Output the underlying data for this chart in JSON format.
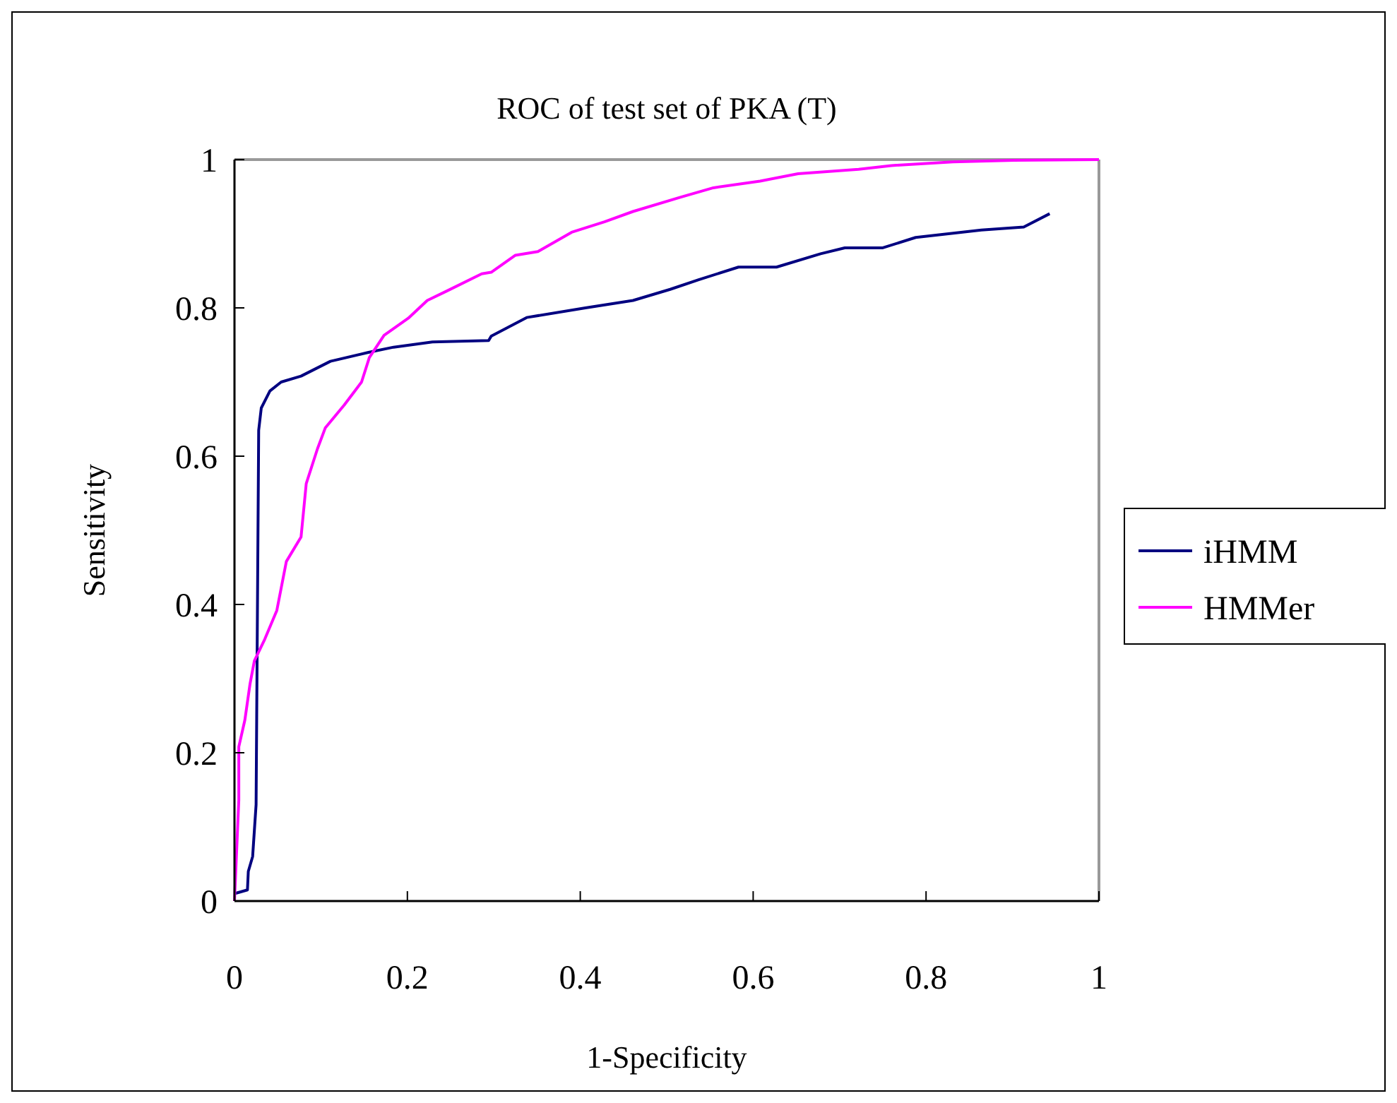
{
  "chart_data": {
    "type": "line",
    "title": "ROC of test set of PKA (T)",
    "xlabel": "1-Specificity",
    "ylabel": "Sensitivity",
    "xlim": [
      0,
      1
    ],
    "xticks": [
      0,
      0.2,
      0.4,
      0.6,
      0.8,
      1
    ],
    "ylim": [
      0,
      1
    ],
    "yticks": [
      0,
      0.2,
      0.4,
      0.6,
      0.8,
      1
    ],
    "grid": false,
    "legend": "right",
    "marker": "none",
    "line_style": "solid",
    "series": [
      {
        "name": "iHMM",
        "color": "#000080",
        "x": [
          0,
          0.015,
          0.016,
          0.021,
          0.025,
          0.028,
          0.031,
          0.041,
          0.054,
          0.077,
          0.111,
          0.155,
          0.184,
          0.229,
          0.294,
          0.297,
          0.338,
          0.406,
          0.461,
          0.504,
          0.537,
          0.583,
          0.627,
          0.678,
          0.706,
          0.75,
          0.788,
          0.864,
          0.913,
          0.943
        ],
        "values": [
          0.01,
          0.015,
          0.04,
          0.06,
          0.13,
          0.635,
          0.665,
          0.688,
          0.7,
          0.708,
          0.728,
          0.74,
          0.747,
          0.754,
          0.756,
          0.762,
          0.787,
          0.8,
          0.81,
          0.825,
          0.838,
          0.855,
          0.855,
          0.873,
          0.881,
          0.881,
          0.895,
          0.905,
          0.909,
          0.927
        ]
      },
      {
        "name": "HMMer",
        "color": "#ff00ff",
        "x": [
          0,
          0.005,
          0.005,
          0.012,
          0.018,
          0.023,
          0.035,
          0.049,
          0.06,
          0.077,
          0.083,
          0.096,
          0.105,
          0.127,
          0.147,
          0.156,
          0.173,
          0.201,
          0.223,
          0.246,
          0.286,
          0.297,
          0.325,
          0.351,
          0.39,
          0.428,
          0.461,
          0.515,
          0.554,
          0.608,
          0.652,
          0.722,
          0.76,
          0.831,
          0.902,
          1
        ],
        "values": [
          0,
          0.136,
          0.208,
          0.244,
          0.293,
          0.324,
          0.353,
          0.392,
          0.458,
          0.491,
          0.563,
          0.61,
          0.638,
          0.669,
          0.7,
          0.733,
          0.763,
          0.786,
          0.81,
          0.823,
          0.846,
          0.848,
          0.871,
          0.876,
          0.902,
          0.916,
          0.93,
          0.949,
          0.962,
          0.971,
          0.981,
          0.987,
          0.992,
          0.997,
          0.999,
          1
        ]
      }
    ]
  }
}
